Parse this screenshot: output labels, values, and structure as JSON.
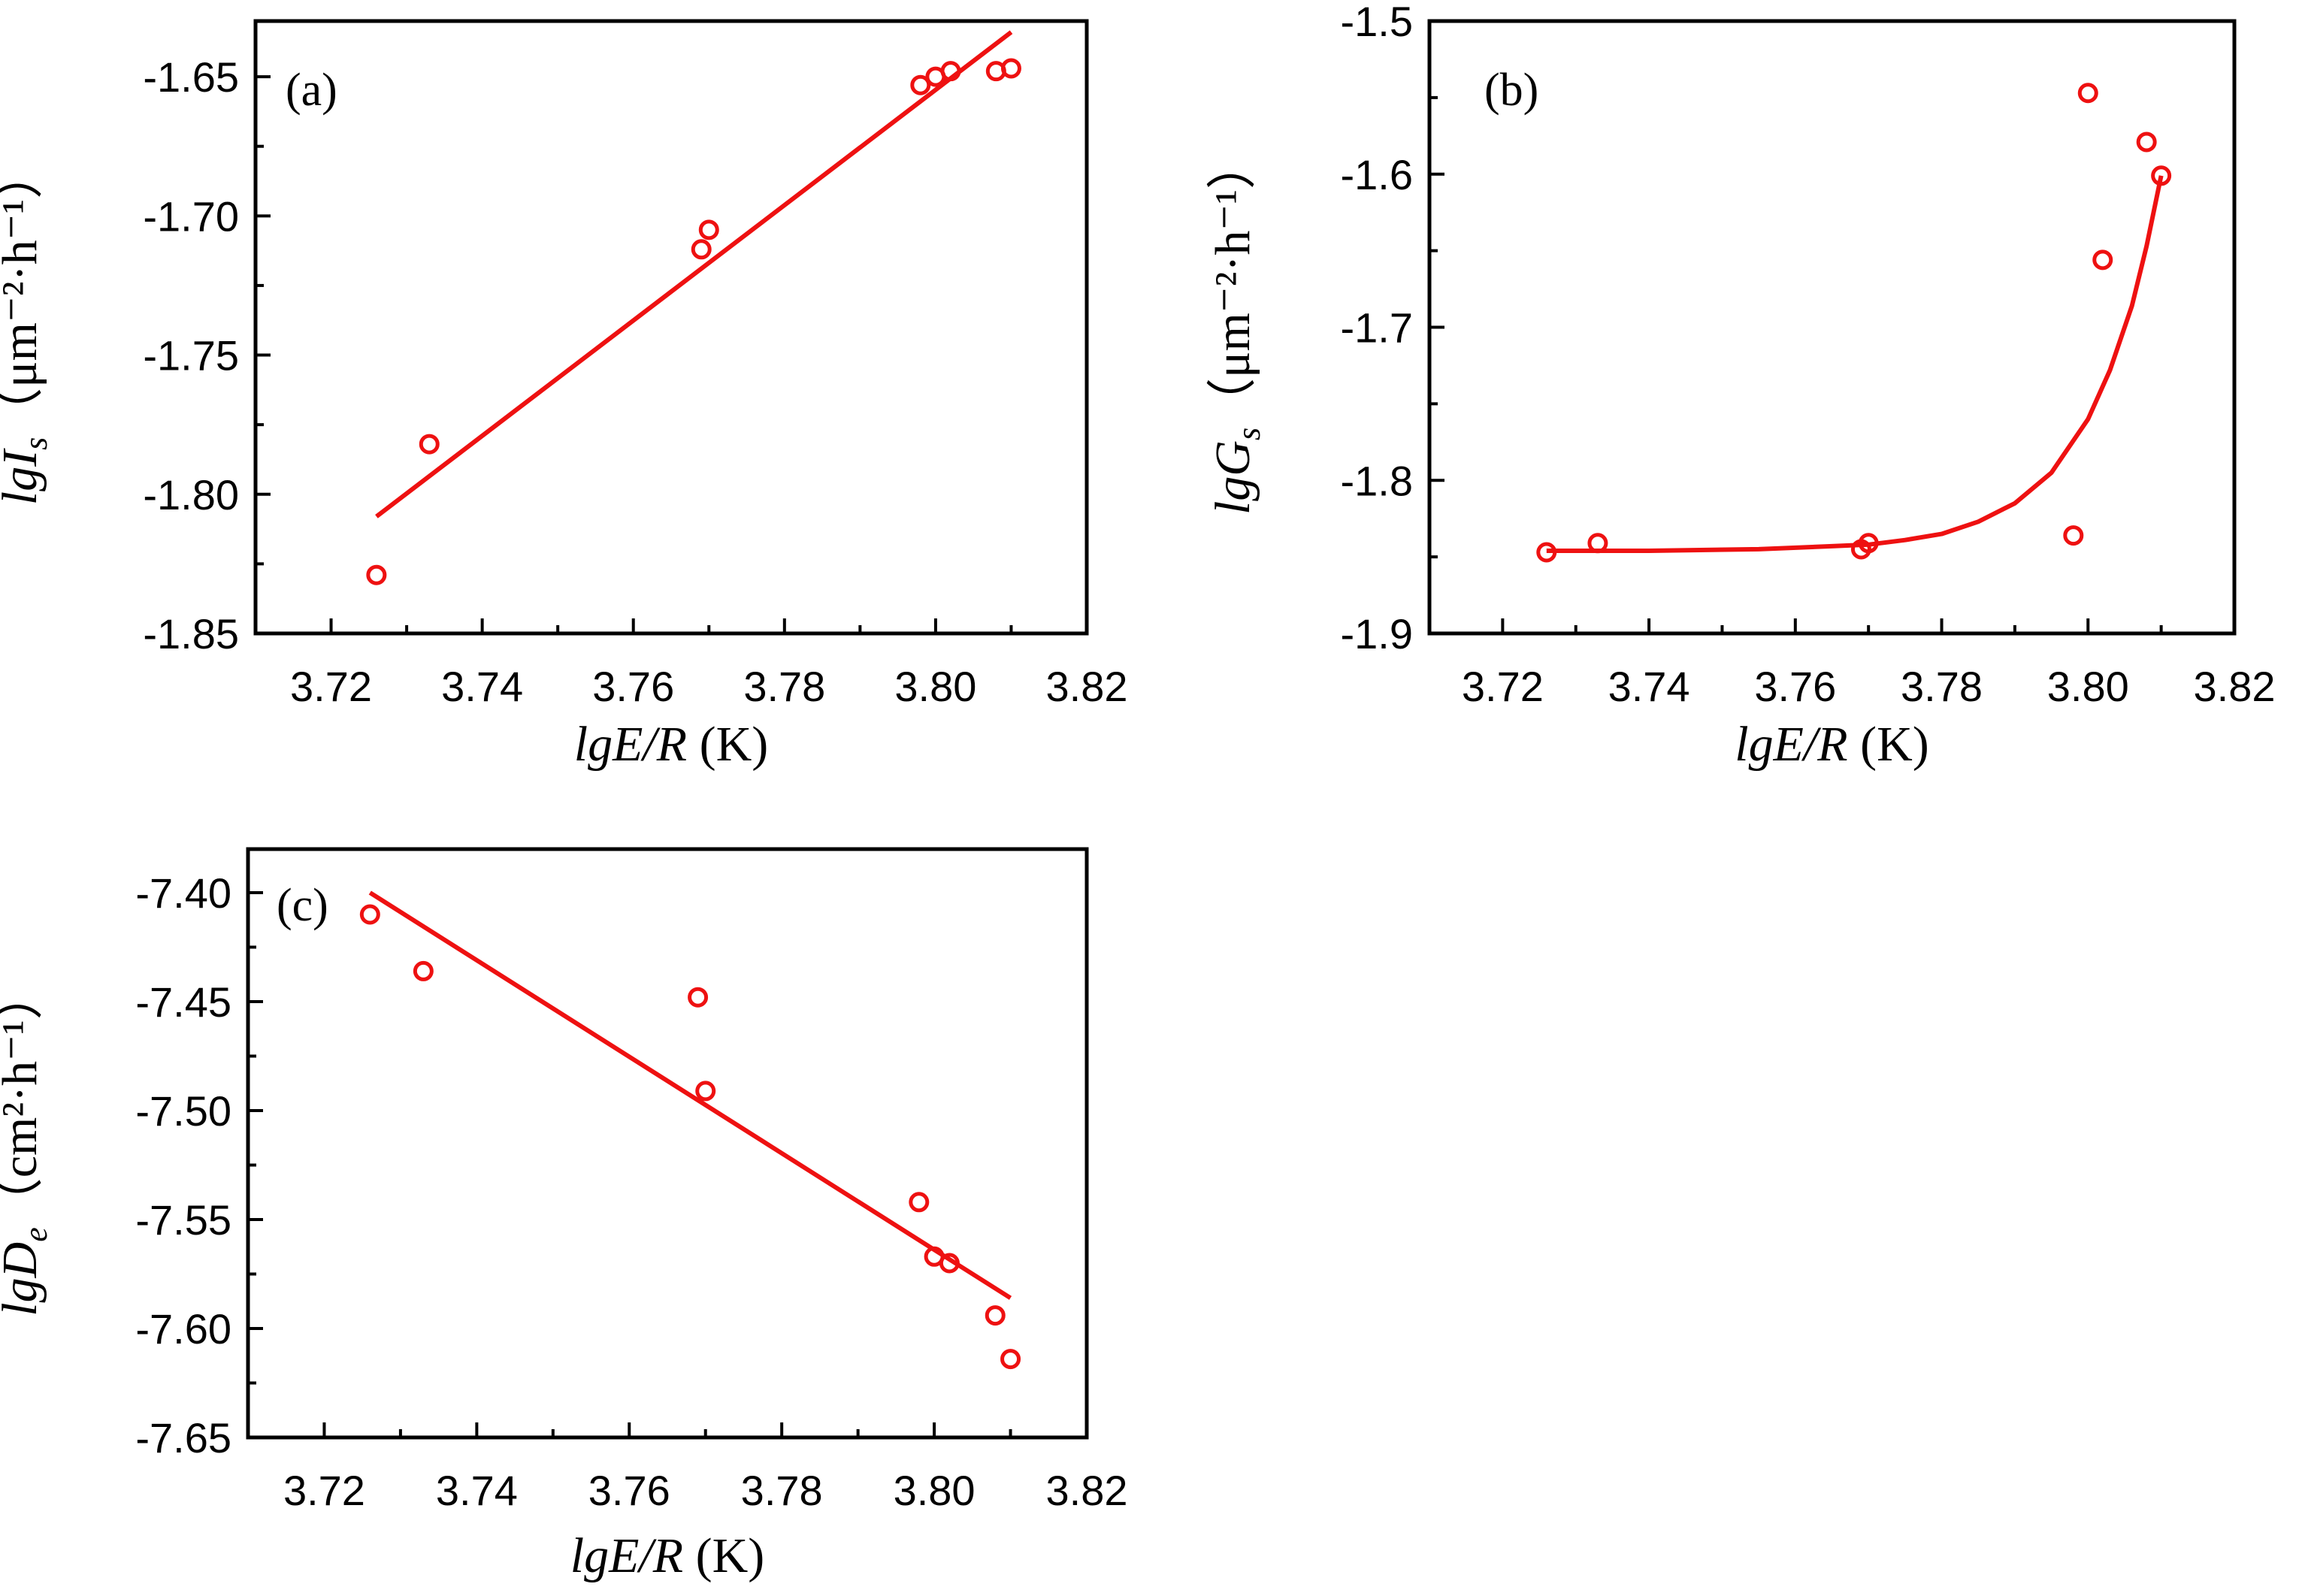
{
  "figure": {
    "colors": {
      "series": "#ee1111",
      "axis": "#000000",
      "background": "#ffffff"
    }
  },
  "chart_data": [
    {
      "type": "scatter",
      "panel_label": "(a)",
      "x": [
        3.726,
        3.733,
        3.769,
        3.77,
        3.798,
        3.8,
        3.802,
        3.808,
        3.81
      ],
      "y": [
        -1.829,
        -1.782,
        -1.712,
        -1.705,
        -1.653,
        -1.65,
        -1.648,
        -1.648,
        -1.647
      ],
      "fit": {
        "type": "line",
        "x": [
          3.726,
          3.81
        ],
        "y": [
          -1.808,
          -1.634
        ]
      },
      "xlim": [
        3.71,
        3.82
      ],
      "ylim": [
        -1.85,
        -1.63
      ],
      "xticks": [
        3.72,
        3.74,
        3.76,
        3.78,
        3.8,
        3.82
      ],
      "xtick_labels": [
        "3.72",
        "3.74",
        "3.76",
        "3.78",
        "3.80",
        "3.82"
      ],
      "yticks": [
        -1.85,
        -1.8,
        -1.75,
        -1.7,
        -1.65
      ],
      "ytick_labels": [
        "-1.85",
        "-1.80",
        "-1.75",
        "-1.70",
        "-1.65"
      ],
      "xlabel": {
        "italic": "lgE/R",
        "rest": " (K)"
      },
      "ylabel": {
        "italic": "lgI",
        "sub": "s",
        "rest": "（μm⁻²·h⁻¹）"
      }
    },
    {
      "type": "scatter",
      "panel_label": "(b)",
      "x": [
        3.726,
        3.733,
        3.769,
        3.77,
        3.798,
        3.8,
        3.802,
        3.808,
        3.81
      ],
      "y": [
        -1.847,
        -1.841,
        -1.845,
        -1.841,
        -1.836,
        -1.547,
        -1.656,
        -1.579,
        -1.601
      ],
      "fit": {
        "type": "curve",
        "x": [
          3.726,
          3.74,
          3.755,
          3.765,
          3.77,
          3.775,
          3.78,
          3.785,
          3.79,
          3.795,
          3.8,
          3.803,
          3.806,
          3.808,
          3.81
        ],
        "y": [
          -1.846,
          -1.846,
          -1.845,
          -1.843,
          -1.842,
          -1.839,
          -1.835,
          -1.827,
          -1.815,
          -1.795,
          -1.76,
          -1.728,
          -1.686,
          -1.647,
          -1.601
        ]
      },
      "xlim": [
        3.71,
        3.82
      ],
      "ylim": [
        -1.9,
        -1.5
      ],
      "xticks": [
        3.72,
        3.74,
        3.76,
        3.78,
        3.8,
        3.82
      ],
      "xtick_labels": [
        "3.72",
        "3.74",
        "3.76",
        "3.78",
        "3.80",
        "3.82"
      ],
      "yticks": [
        -1.9,
        -1.8,
        -1.7,
        -1.6,
        -1.5
      ],
      "ytick_labels": [
        "-1.9",
        "-1.8",
        "-1.7",
        "-1.6",
        "-1.5"
      ],
      "xlabel": {
        "italic": "lgE/R",
        "rest": " (K)"
      },
      "ylabel": {
        "italic": "lgG",
        "sub": "s",
        "rest": "（μm⁻²·h⁻¹）"
      }
    },
    {
      "type": "scatter",
      "panel_label": "(c)",
      "x": [
        3.726,
        3.733,
        3.769,
        3.77,
        3.798,
        3.8,
        3.802,
        3.808,
        3.81
      ],
      "y": [
        -7.41,
        -7.436,
        -7.448,
        -7.491,
        -7.542,
        -7.567,
        -7.57,
        -7.594,
        -7.614
      ],
      "fit": {
        "type": "line",
        "x": [
          3.726,
          3.81
        ],
        "y": [
          -7.4,
          -7.586
        ]
      },
      "xlim": [
        3.71,
        3.82
      ],
      "ylim": [
        -7.65,
        -7.38
      ],
      "xticks": [
        3.72,
        3.74,
        3.76,
        3.78,
        3.8,
        3.82
      ],
      "xtick_labels": [
        "3.72",
        "3.74",
        "3.76",
        "3.78",
        "3.80",
        "3.82"
      ],
      "yticks": [
        -7.65,
        -7.6,
        -7.55,
        -7.5,
        -7.45,
        -7.4
      ],
      "ytick_labels": [
        "-7.65",
        "-7.60",
        "-7.55",
        "-7.50",
        "-7.45",
        "-7.40"
      ],
      "xlabel": {
        "italic": "lgE/R",
        "rest": " (K)"
      },
      "ylabel": {
        "italic": "lgD",
        "sub": "e",
        "rest": "（cm²·h⁻¹）"
      }
    }
  ]
}
